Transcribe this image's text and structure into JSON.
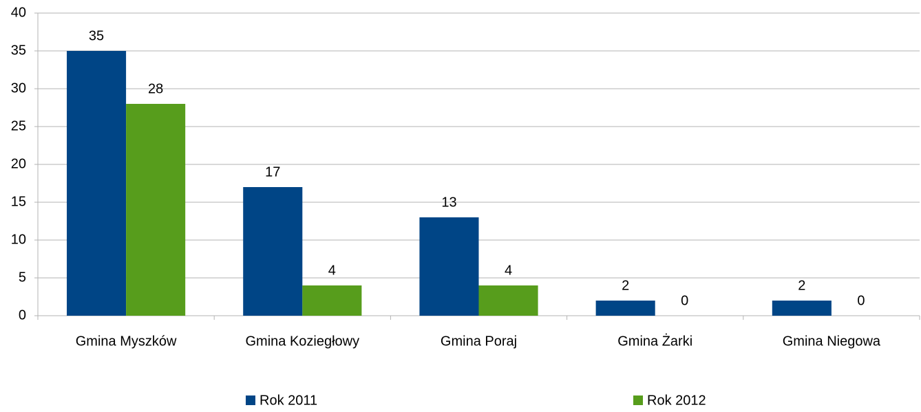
{
  "chart_data": {
    "type": "bar",
    "categories": [
      "Gmina Myszków",
      "Gmina Koziegłowy",
      "Gmina Poraj",
      "Gmina Żarki",
      "Gmina Niegowa"
    ],
    "series": [
      {
        "name": "Rok 2011",
        "color": "#004586",
        "values": [
          35,
          17,
          13,
          2,
          2
        ]
      },
      {
        "name": "Rok 2012",
        "color": "#579d1c",
        "values": [
          28,
          4,
          4,
          0,
          0
        ]
      }
    ],
    "ylim": [
      0,
      40
    ],
    "yticks": [
      0,
      5,
      10,
      15,
      20,
      25,
      30,
      35,
      40
    ],
    "grid": true,
    "legend": "bottom"
  }
}
